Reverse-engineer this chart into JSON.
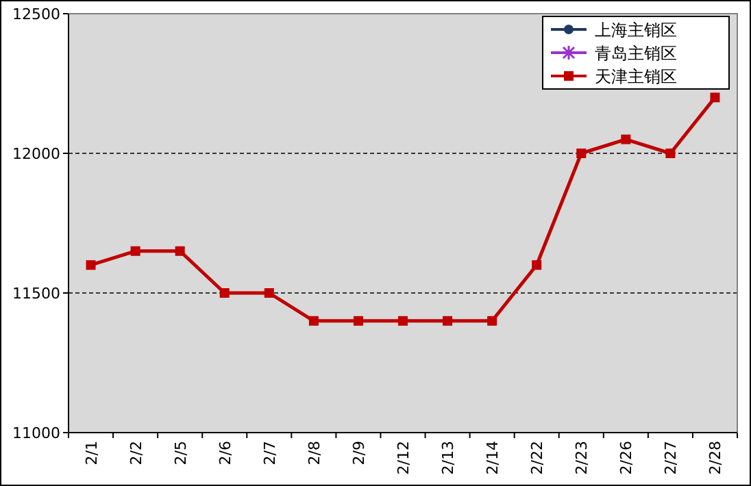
{
  "chart_data": {
    "type": "line",
    "categories": [
      "2/1",
      "2/2",
      "2/5",
      "2/6",
      "2/7",
      "2/8",
      "2/9",
      "2/12",
      "2/13",
      "2/14",
      "2/22",
      "2/23",
      "2/26",
      "2/27",
      "2/28"
    ],
    "series": [
      {
        "name": "上海主销区",
        "color": "#1f3864",
        "marker": "circle",
        "values": [
          null,
          null,
          null,
          null,
          null,
          null,
          null,
          null,
          null,
          null,
          null,
          null,
          null,
          null,
          null
        ]
      },
      {
        "name": "青岛主销区",
        "color": "#9933cc",
        "marker": "star",
        "values": [
          null,
          null,
          null,
          null,
          null,
          null,
          null,
          null,
          null,
          null,
          null,
          null,
          null,
          null,
          null
        ]
      },
      {
        "name": "天津主销区",
        "color": "#c00000",
        "marker": "square",
        "values": [
          11600,
          11650,
          11650,
          11500,
          11500,
          11400,
          11400,
          11400,
          11400,
          11400,
          11600,
          12000,
          12050,
          12000,
          12200
        ]
      }
    ],
    "ylim": [
      11000,
      12500
    ],
    "yticks": [
      11000,
      11500,
      12000,
      12500
    ],
    "grid": "y",
    "legend": "top right",
    "line_style": "solid"
  }
}
